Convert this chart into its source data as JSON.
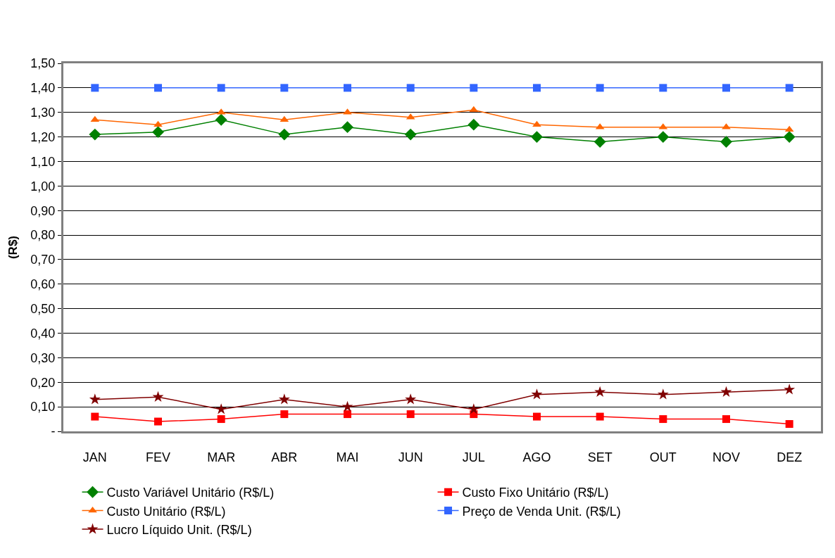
{
  "chart_data": {
    "type": "line",
    "ylabel": "(R$)",
    "categories": [
      "JAN",
      "FEV",
      "MAR",
      "ABR",
      "MAI",
      "JUN",
      "JUL",
      "AGO",
      "SET",
      "OUT",
      "NOV",
      "DEZ"
    ],
    "series": [
      {
        "name": "Custo Variável Unitário (R$/L)",
        "color": "#008000",
        "marker": "diamond",
        "values": [
          1.21,
          1.22,
          1.27,
          1.21,
          1.24,
          1.21,
          1.25,
          1.2,
          1.18,
          1.2,
          1.18,
          1.2
        ]
      },
      {
        "name": "Custo Fixo Unitário (R$/L)",
        "color": "#ff0000",
        "marker": "square",
        "values": [
          0.06,
          0.04,
          0.05,
          0.07,
          0.07,
          0.07,
          0.07,
          0.06,
          0.06,
          0.05,
          0.05,
          0.03
        ]
      },
      {
        "name": "Custo Unitário (R$/L)",
        "color": "#ff6600",
        "marker": "triangle",
        "values": [
          1.27,
          1.25,
          1.3,
          1.27,
          1.3,
          1.28,
          1.31,
          1.25,
          1.24,
          1.24,
          1.24,
          1.23
        ]
      },
      {
        "name": "Preço de Venda Unit. (R$/L)",
        "color": "#3366ff",
        "marker": "square",
        "values": [
          1.4,
          1.4,
          1.4,
          1.4,
          1.4,
          1.4,
          1.4,
          1.4,
          1.4,
          1.4,
          1.4,
          1.4
        ]
      },
      {
        "name": "Lucro Líquido Unit. (R$/L)",
        "color": "#800000",
        "marker": "star",
        "values": [
          0.13,
          0.14,
          0.09,
          0.13,
          0.1,
          0.13,
          0.09,
          0.15,
          0.16,
          0.15,
          0.16,
          0.17
        ]
      }
    ],
    "ylim": [
      0,
      1.5
    ],
    "yticks": [
      {
        "value": 0,
        "label": "-"
      },
      {
        "value": 0.1,
        "label": "0,10"
      },
      {
        "value": 0.2,
        "label": "0,20"
      },
      {
        "value": 0.3,
        "label": "0,30"
      },
      {
        "value": 0.4,
        "label": "0,40"
      },
      {
        "value": 0.5,
        "label": "0,50"
      },
      {
        "value": 0.6,
        "label": "0,60"
      },
      {
        "value": 0.7,
        "label": "0,70"
      },
      {
        "value": 0.8,
        "label": "0,80"
      },
      {
        "value": 0.9,
        "label": "0,90"
      },
      {
        "value": 1.0,
        "label": "1,00"
      },
      {
        "value": 1.1,
        "label": "1,10"
      },
      {
        "value": 1.2,
        "label": "1,20"
      },
      {
        "value": 1.3,
        "label": "1,30"
      },
      {
        "value": 1.4,
        "label": "1,40"
      },
      {
        "value": 1.5,
        "label": "1,50"
      }
    ],
    "grid": "y",
    "legend": "bottom",
    "line_style": "solid"
  }
}
